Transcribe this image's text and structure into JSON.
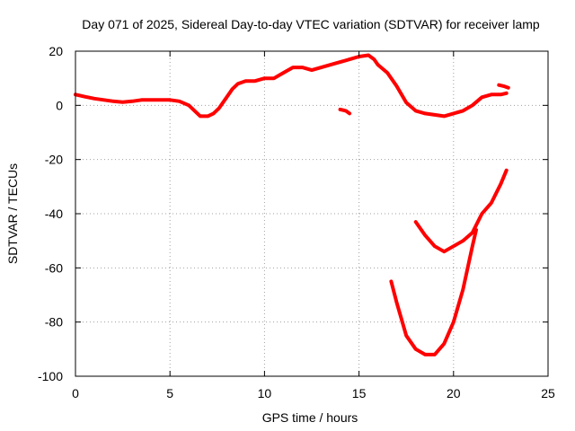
{
  "chart_data": {
    "type": "line",
    "title": "Day 071 of 2025, Sidereal Day-to-day VTEC variation (SDTVAR) for receiver lamp",
    "xlabel": "GPS time / hours",
    "ylabel": "SDTVAR / TECUs",
    "xlim": [
      0,
      25
    ],
    "ylim": [
      -100,
      20
    ],
    "xticks": [
      0,
      5,
      10,
      15,
      20,
      25
    ],
    "yticks": [
      -100,
      -80,
      -60,
      -40,
      -20,
      0,
      20
    ],
    "grid": true,
    "color": "#ff0000",
    "series": [
      {
        "name": "main-trace",
        "points": [
          [
            0,
            4
          ],
          [
            0.5,
            3.2
          ],
          [
            1,
            2.5
          ],
          [
            1.5,
            2
          ],
          [
            2,
            1.5
          ],
          [
            2.5,
            1.2
          ],
          [
            3,
            1.5
          ],
          [
            3.5,
            2
          ],
          [
            4,
            2
          ],
          [
            4.5,
            2
          ],
          [
            5,
            2
          ],
          [
            5.5,
            1.5
          ],
          [
            6,
            0
          ],
          [
            6.3,
            -2
          ],
          [
            6.6,
            -4
          ],
          [
            7,
            -4
          ],
          [
            7.3,
            -3
          ],
          [
            7.6,
            -1
          ],
          [
            8,
            3
          ],
          [
            8.3,
            6
          ],
          [
            8.6,
            8
          ],
          [
            9,
            9
          ],
          [
            9.5,
            9
          ],
          [
            10,
            10
          ],
          [
            10.5,
            10
          ],
          [
            11,
            12
          ],
          [
            11.5,
            14
          ],
          [
            12,
            14
          ],
          [
            12.5,
            13
          ],
          [
            13,
            14
          ],
          [
            13.5,
            15
          ],
          [
            14,
            16
          ],
          [
            14.5,
            17
          ],
          [
            15,
            18
          ],
          [
            15.5,
            18.5
          ],
          [
            15.8,
            17
          ],
          [
            16,
            15
          ],
          [
            16.5,
            12
          ],
          [
            17,
            7
          ],
          [
            17.5,
            1
          ],
          [
            18,
            -2
          ],
          [
            18.5,
            -3
          ],
          [
            19,
            -3.5
          ],
          [
            19.5,
            -4
          ],
          [
            20,
            -3
          ],
          [
            20.5,
            -2
          ],
          [
            21,
            0
          ],
          [
            21.5,
            3
          ],
          [
            22,
            4
          ],
          [
            22.5,
            4
          ],
          [
            22.8,
            4.5
          ]
        ]
      },
      {
        "name": "short-segment-a",
        "points": [
          [
            14,
            -1.5
          ],
          [
            14.3,
            -2
          ],
          [
            14.5,
            -3
          ]
        ]
      },
      {
        "name": "short-segment-b",
        "points": [
          [
            22.4,
            7.5
          ],
          [
            22.7,
            7
          ],
          [
            22.9,
            6.5
          ]
        ]
      },
      {
        "name": "upper-descent-trace",
        "points": [
          [
            18,
            -43
          ],
          [
            18.5,
            -48
          ],
          [
            19,
            -52
          ],
          [
            19.5,
            -54
          ],
          [
            20,
            -52
          ],
          [
            20.5,
            -50
          ],
          [
            21,
            -47
          ],
          [
            21.5,
            -40
          ],
          [
            22,
            -36
          ],
          [
            22.5,
            -29
          ],
          [
            22.8,
            -24
          ]
        ]
      },
      {
        "name": "deep-dip-trace",
        "points": [
          [
            16.7,
            -65
          ],
          [
            17,
            -73
          ],
          [
            17.5,
            -85
          ],
          [
            18,
            -90
          ],
          [
            18.5,
            -92
          ],
          [
            19,
            -92
          ],
          [
            19.5,
            -88
          ],
          [
            20,
            -80
          ],
          [
            20.5,
            -68
          ],
          [
            21,
            -52
          ],
          [
            21.2,
            -46
          ]
        ]
      }
    ]
  }
}
